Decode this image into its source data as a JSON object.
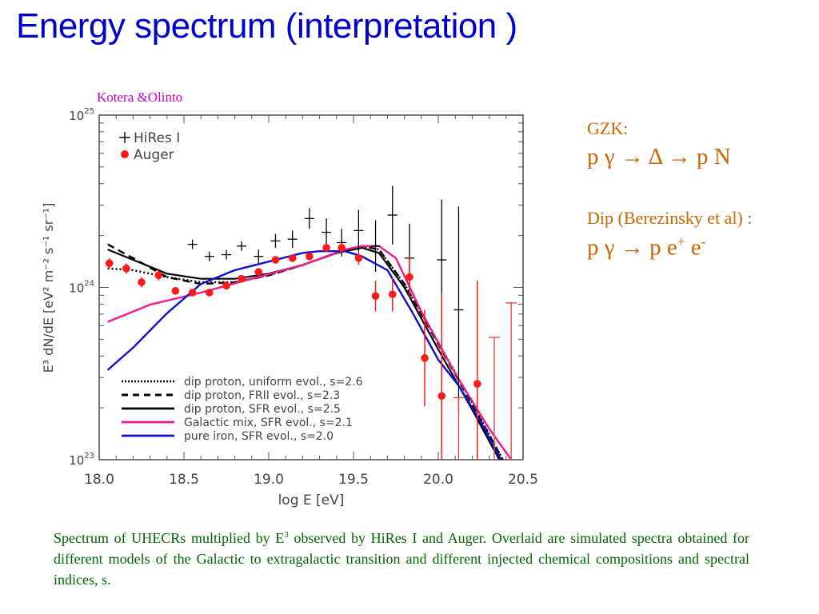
{
  "slide": {
    "title": "Energy spectrum (interpretation )",
    "credit": "Kotera &Olinto"
  },
  "side_notes": {
    "gzk_label": "GZK:",
    "gzk_equation": "p γ → Δ → p N",
    "dip_label": "Dip (Berezinsky et al) :",
    "dip_equation_base": "p γ → p e",
    "dip_equation_sup1": "+",
    "dip_equation_mid": " e",
    "dip_equation_sup2": "-"
  },
  "caption": {
    "part1": "Spectrum of UHECRs multiplied by E",
    "sup": "3",
    "part2": " observed by HiRes I and Auger. Overlaid are simulated spectra obtained for different models of the Galactic to extragalactic transition and different injected chemical compositions and spectral indices, s."
  },
  "colors": {
    "title": "#0000cc",
    "credit": "#cc00cc",
    "side_notes": "#cc6600",
    "caption": "#006600",
    "auger": "#ff1a1a",
    "hires": "#000000",
    "galactic_mix": "#ee1c8c",
    "pure_iron": "#1010cc",
    "dip_proton": "#000000"
  },
  "chart_data": {
    "type": "scatter",
    "title": "",
    "xlabel": "log E [eV]",
    "ylabel": "E³ dN/dE [eV² m⁻² s⁻¹ sr⁻¹]",
    "xlim": [
      18.0,
      20.5
    ],
    "ylim_log10": [
      23,
      25
    ],
    "yscale": "log",
    "x_ticks": [
      "18.0",
      "18.5",
      "19.0",
      "19.5",
      "20.0",
      "20.5"
    ],
    "x_tick_values": [
      18.0,
      18.5,
      19.0,
      19.5,
      20.0,
      20.5
    ],
    "y_ticks": [
      {
        "base": "10",
        "exp": "25",
        "log10": 25
      },
      {
        "base": "10",
        "exp": "24",
        "log10": 24
      },
      {
        "base": "10",
        "exp": "23",
        "log10": 23
      }
    ],
    "legend_top": [
      {
        "marker": "plus",
        "label": "HiRes I"
      },
      {
        "marker": "dot",
        "label": "Auger"
      }
    ],
    "legend_bottom": [
      {
        "style": "dotted",
        "label": "dip proton, uniform evol., s=2.6"
      },
      {
        "style": "dashed",
        "label": "dip proton, FRII evol., s=2.3"
      },
      {
        "style": "solid-black",
        "label": "dip proton, SFR evol., s=2.5"
      },
      {
        "style": "solid-pink",
        "label": "Galactic mix, SFR evol., s=2.1"
      },
      {
        "style": "solid-blue",
        "label": "pure iron, SFR evol., s=2.0"
      }
    ],
    "series": [
      {
        "name": "Auger",
        "kind": "points",
        "x": [
          18.06,
          18.16,
          18.25,
          18.35,
          18.45,
          18.55,
          18.65,
          18.75,
          18.84,
          18.94,
          19.04,
          19.14,
          19.24,
          19.34,
          19.43,
          19.53,
          19.63,
          19.73,
          19.83,
          19.92,
          20.02,
          20.23
        ],
        "log10_y": [
          24.14,
          24.11,
          24.03,
          24.07,
          23.98,
          23.97,
          23.97,
          24.01,
          24.05,
          24.09,
          24.16,
          24.17,
          24.18,
          24.23,
          24.23,
          24.17,
          23.95,
          23.96,
          24.06,
          23.59,
          23.37,
          23.44
        ],
        "err_log10": [
          0.03,
          0.03,
          0.03,
          0.03,
          0.02,
          0.02,
          0.02,
          0.02,
          0.02,
          0.02,
          0.02,
          0.02,
          0.02,
          0.02,
          0.03,
          0.04,
          0.09,
          0.1,
          0.12,
          0.28,
          0.6,
          0.6
        ],
        "upper_limits": {
          "x": [
            20.12,
            20.33,
            20.43
          ],
          "log10_y": [
            23.36,
            23.71,
            23.91
          ]
        }
      },
      {
        "name": "HiRes I",
        "kind": "points",
        "x": [
          18.55,
          18.65,
          18.75,
          18.84,
          18.94,
          19.04,
          19.14,
          19.24,
          19.34,
          19.43,
          19.53,
          19.63,
          19.73,
          19.83,
          20.02,
          20.12
        ],
        "log10_y": [
          24.25,
          24.18,
          24.19,
          24.24,
          24.18,
          24.27,
          24.28,
          24.4,
          24.32,
          24.26,
          24.33,
          24.24,
          24.42,
          24.17,
          24.16,
          23.87
        ],
        "err_log10": [
          0.02,
          0.02,
          0.02,
          0.02,
          0.04,
          0.04,
          0.05,
          0.06,
          0.08,
          0.08,
          0.12,
          0.15,
          0.17,
          0.2,
          0.35,
          0.6
        ]
      },
      {
        "name": "dip proton, uniform evol., s=2.6",
        "kind": "line",
        "style": "dotted",
        "x": [
          18.05,
          18.2,
          18.4,
          18.6,
          18.8,
          19.0,
          19.2,
          19.4,
          19.55,
          19.65,
          19.8,
          20.0,
          20.2,
          20.38
        ],
        "log10_y": [
          24.11,
          24.1,
          24.06,
          24.03,
          24.03,
          24.07,
          24.13,
          24.2,
          24.24,
          24.22,
          24.02,
          23.68,
          23.33,
          23.0
        ]
      },
      {
        "name": "dip proton, FRII evol., s=2.3",
        "kind": "line",
        "style": "dashed",
        "x": [
          18.05,
          18.2,
          18.4,
          18.6,
          18.8,
          19.0,
          19.2,
          19.4,
          19.55,
          19.65,
          19.8,
          20.0,
          20.2,
          20.38
        ],
        "log10_y": [
          24.25,
          24.17,
          24.06,
          24.02,
          24.03,
          24.07,
          24.13,
          24.2,
          24.24,
          24.22,
          24.02,
          23.67,
          23.32,
          23.0
        ]
      },
      {
        "name": "dip proton, SFR evol., s=2.5",
        "kind": "line",
        "style": "solid",
        "x": [
          18.05,
          18.2,
          18.4,
          18.6,
          18.8,
          19.0,
          19.2,
          19.4,
          19.55,
          19.65,
          19.8,
          20.0,
          20.2,
          20.36
        ],
        "log10_y": [
          24.22,
          24.16,
          24.08,
          24.05,
          24.05,
          24.08,
          24.13,
          24.2,
          24.23,
          24.2,
          24.0,
          23.64,
          23.29,
          23.0
        ]
      },
      {
        "name": "Galactic mix, SFR evol., s=2.1",
        "kind": "line",
        "style": "solid",
        "x": [
          18.05,
          18.3,
          18.6,
          18.9,
          19.2,
          19.45,
          19.55,
          19.65,
          19.75,
          19.9,
          20.1,
          20.3,
          20.43
        ],
        "log10_y": [
          23.8,
          23.9,
          23.97,
          24.05,
          24.13,
          24.22,
          24.24,
          24.24,
          24.17,
          23.86,
          23.5,
          23.18,
          23.0
        ]
      },
      {
        "name": "pure iron, SFR evol., s=2.0",
        "kind": "line",
        "style": "solid",
        "x": [
          18.05,
          18.2,
          18.4,
          18.6,
          18.8,
          19.0,
          19.2,
          19.3,
          19.45,
          19.55,
          19.7,
          19.85,
          20.0,
          20.12,
          20.25,
          20.37
        ],
        "log10_y": [
          23.52,
          23.65,
          23.85,
          24.02,
          24.1,
          24.15,
          24.2,
          24.21,
          24.21,
          24.18,
          24.1,
          23.85,
          23.58,
          23.43,
          23.22,
          23.0
        ]
      }
    ]
  }
}
